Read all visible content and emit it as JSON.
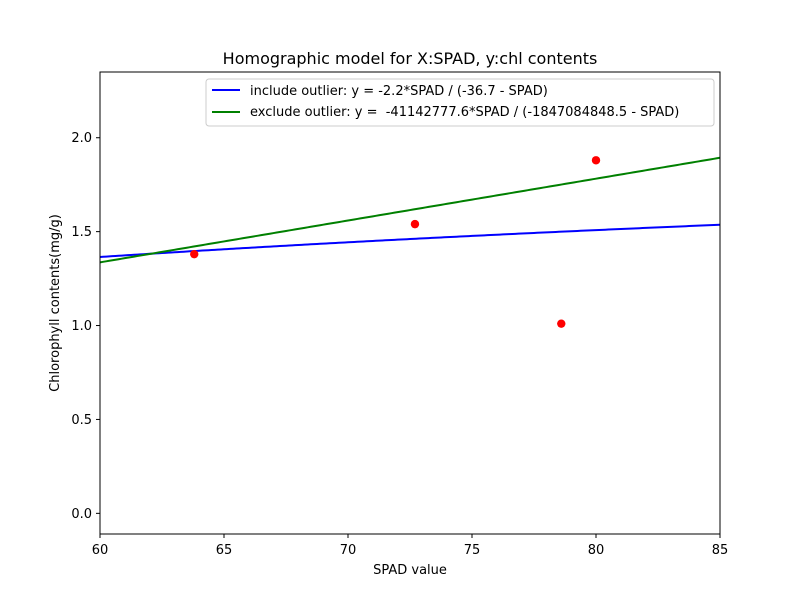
{
  "chart_data": {
    "type": "scatter",
    "title": "Homographic model for X:SPAD, y:chl contents",
    "xlabel": "SPAD value",
    "ylabel": "Chlorophyll contents(mg/g)",
    "xlim": [
      60,
      85
    ],
    "ylim": [
      -0.11,
      2.35
    ],
    "xticks": [
      60,
      65,
      70,
      75,
      80,
      85
    ],
    "yticks": [
      0.0,
      0.5,
      1.0,
      1.5,
      2.0
    ],
    "xtick_labels": [
      "60",
      "65",
      "70",
      "75",
      "80",
      "85"
    ],
    "ytick_labels": [
      "0.0",
      "0.5",
      "1.0",
      "1.5",
      "2.0"
    ],
    "grid": false,
    "legend_position": "top-right",
    "points": {
      "x": [
        63.8,
        72.7,
        78.6,
        80.0
      ],
      "y": [
        1.38,
        1.54,
        1.01,
        1.88
      ],
      "color": "#ff0000"
    },
    "series": [
      {
        "name": "include outlier: y = -2.2*SPAD / (-36.7 - SPAD)",
        "color": "#0000ff",
        "a": -2.2,
        "b": -36.7
      },
      {
        "name": "exclude outlier: y =  -41142777.6*SPAD / (-1847084848.5 - SPAD)",
        "color": "#008000",
        "a": -41142777.6,
        "b": -1847084848.5
      }
    ]
  }
}
